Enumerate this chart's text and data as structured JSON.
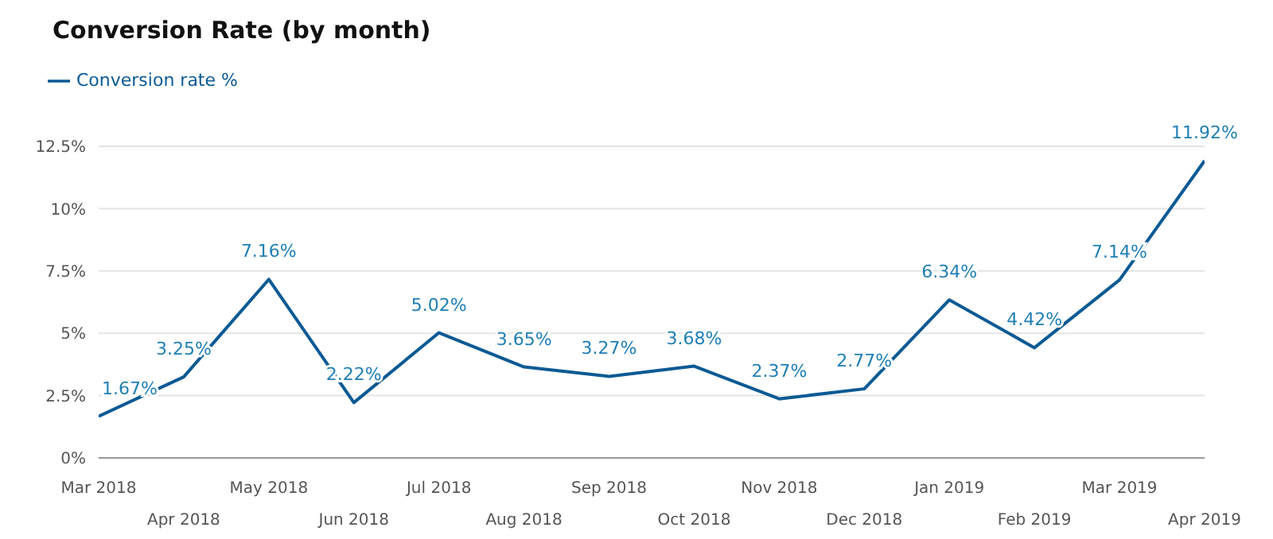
{
  "chart_data": {
    "type": "line",
    "title": "Conversion Rate (by month)",
    "categories": [
      "Mar 2018",
      "Apr 2018",
      "May 2018",
      "Jun 2018",
      "Jul 2018",
      "Aug 2018",
      "Sep 2018",
      "Oct 2018",
      "Nov 2018",
      "Dec 2018",
      "Jan 2019",
      "Feb 2019",
      "Mar 2019",
      "Apr 2019"
    ],
    "series": [
      {
        "name": "Conversion rate %",
        "color": "#0b5a94",
        "values": [
          1.67,
          3.25,
          7.16,
          2.22,
          5.02,
          3.65,
          3.27,
          3.68,
          2.37,
          2.77,
          6.34,
          4.42,
          7.14,
          11.92
        ],
        "value_labels": [
          "1.67%",
          "3.25%",
          "7.16%",
          "2.22%",
          "5.02%",
          "3.65%",
          "3.27%",
          "3.68%",
          "2.37%",
          "2.77%",
          "6.34%",
          "4.42%",
          "7.14%",
          "11.92%"
        ]
      }
    ],
    "ylim": [
      0,
      12.5
    ],
    "yticks": [
      {
        "value": 0,
        "label": "0%"
      },
      {
        "value": 2.5,
        "label": "2.5%"
      },
      {
        "value": 5,
        "label": "5%"
      },
      {
        "value": 7.5,
        "label": "7.5%"
      },
      {
        "value": 10,
        "label": "10%"
      },
      {
        "value": 12.5,
        "label": "12.5%"
      }
    ],
    "grid": "y",
    "legend": "top left",
    "marker": "none",
    "line_style": "solid"
  }
}
